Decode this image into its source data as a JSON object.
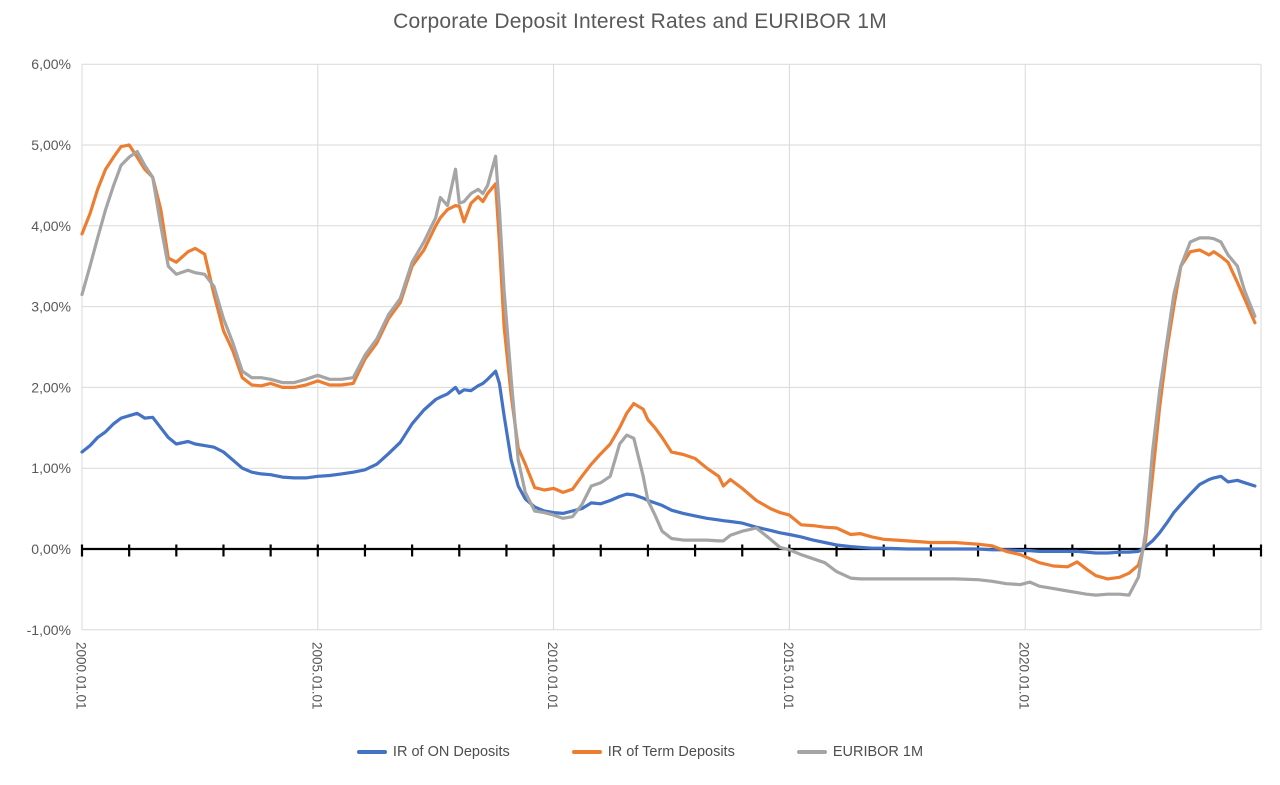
{
  "title": "Corporate Deposit Interest Rates and EURIBOR 1M",
  "colors": {
    "accent_blue": "#4472C4",
    "accent_orange": "#ED7D31",
    "accent_gray": "#A5A5A5",
    "axis_line": "#000000",
    "gridline": "#D9D9D9",
    "axis_label": "#595959",
    "title_text": "#595959",
    "legend_text": "#4d4d4d"
  },
  "chart_data": {
    "type": "line",
    "title": "Corporate Deposit Interest Rates and EURIBOR 1M",
    "xlabel": "",
    "ylabel": "",
    "x_range_years": [
      2000,
      2025
    ],
    "ylim": [
      -1,
      6
    ],
    "grid": true,
    "legend_position": "bottom",
    "y_tick_labels": [
      "6,00%",
      "5,00%",
      "4,00%",
      "3,00%",
      "2,00%",
      "1,00%",
      "0,00%",
      "-1,00%"
    ],
    "y_tick_values": [
      6,
      5,
      4,
      3,
      2,
      1,
      0,
      -1
    ],
    "x_tick_labels": [
      "2000.01.01",
      "2005.01.01",
      "2010.01.01",
      "2015.01.01",
      "2020.01.01"
    ],
    "x_tick_years": [
      2000,
      2005,
      2010,
      2015,
      2020
    ],
    "x_gridline_years": [
      2000,
      2005,
      2010,
      2015,
      2020,
      2025
    ],
    "axis_tick_interval_years": 1,
    "x": [
      2000.0,
      2000.17,
      2000.33,
      2000.5,
      2000.67,
      2000.83,
      2001.0,
      2001.17,
      2001.33,
      2001.5,
      2001.67,
      2001.83,
      2002.0,
      2002.25,
      2002.4,
      2002.6,
      2002.8,
      2003.0,
      2003.2,
      2003.4,
      2003.6,
      2003.8,
      2004.0,
      2004.25,
      2004.5,
      2004.75,
      2005.0,
      2005.25,
      2005.5,
      2005.75,
      2006.0,
      2006.25,
      2006.5,
      2006.75,
      2007.0,
      2007.25,
      2007.5,
      2007.6,
      2007.75,
      2007.92,
      2008.0,
      2008.1,
      2008.25,
      2008.4,
      2008.5,
      2008.6,
      2008.77,
      2008.85,
      2008.95,
      2009.1,
      2009.25,
      2009.4,
      2009.6,
      2009.8,
      2010.0,
      2010.2,
      2010.4,
      2010.6,
      2010.8,
      2011.0,
      2011.2,
      2011.4,
      2011.55,
      2011.7,
      2011.9,
      2012.0,
      2012.15,
      2012.3,
      2012.5,
      2012.75,
      2013.0,
      2013.25,
      2013.5,
      2013.6,
      2013.75,
      2014.0,
      2014.3,
      2014.6,
      2014.8,
      2015.0,
      2015.25,
      2015.5,
      2015.75,
      2016.0,
      2016.3,
      2016.5,
      2016.75,
      2017.0,
      2017.5,
      2018.0,
      2018.5,
      2019.0,
      2019.3,
      2019.6,
      2019.9,
      2020.1,
      2020.3,
      2020.6,
      2020.9,
      2021.1,
      2021.3,
      2021.5,
      2021.75,
      2022.0,
      2022.2,
      2022.4,
      2022.55,
      2022.7,
      2022.85,
      2023.0,
      2023.15,
      2023.3,
      2023.5,
      2023.7,
      2023.9,
      2024.0,
      2024.15,
      2024.3,
      2024.5,
      2024.65,
      2024.87
    ],
    "series": [
      {
        "name": "IR of ON Deposits",
        "color": "#4472C4",
        "values": [
          1.2,
          1.28,
          1.38,
          1.45,
          1.55,
          1.62,
          1.65,
          1.68,
          1.62,
          1.63,
          1.5,
          1.38,
          1.3,
          1.33,
          1.3,
          1.28,
          1.26,
          1.2,
          1.1,
          1.0,
          0.95,
          0.93,
          0.92,
          0.89,
          0.88,
          0.88,
          0.9,
          0.91,
          0.93,
          0.95,
          0.98,
          1.05,
          1.18,
          1.32,
          1.55,
          1.72,
          1.85,
          1.88,
          1.92,
          2.0,
          1.93,
          1.97,
          1.96,
          2.02,
          2.05,
          2.1,
          2.2,
          2.05,
          1.65,
          1.1,
          0.78,
          0.62,
          0.52,
          0.47,
          0.45,
          0.44,
          0.47,
          0.5,
          0.57,
          0.56,
          0.6,
          0.65,
          0.68,
          0.67,
          0.63,
          0.6,
          0.57,
          0.54,
          0.48,
          0.44,
          0.41,
          0.38,
          0.36,
          0.35,
          0.34,
          0.32,
          0.27,
          0.23,
          0.2,
          0.18,
          0.15,
          0.11,
          0.08,
          0.05,
          0.03,
          0.02,
          0.01,
          0.01,
          0.0,
          0.0,
          0.0,
          0.0,
          -0.01,
          -0.01,
          -0.02,
          -0.02,
          -0.03,
          -0.03,
          -0.03,
          -0.03,
          -0.04,
          -0.05,
          -0.05,
          -0.04,
          -0.04,
          -0.03,
          0.03,
          0.1,
          0.2,
          0.32,
          0.45,
          0.55,
          0.68,
          0.8,
          0.86,
          0.88,
          0.9,
          0.83,
          0.85,
          0.82,
          0.78
        ]
      },
      {
        "name": "IR of Term Deposits",
        "color": "#ED7D31",
        "values": [
          3.9,
          4.15,
          4.45,
          4.7,
          4.85,
          4.98,
          5.0,
          4.85,
          4.7,
          4.6,
          4.2,
          3.6,
          3.55,
          3.68,
          3.72,
          3.65,
          3.15,
          2.7,
          2.45,
          2.12,
          2.03,
          2.02,
          2.05,
          2.0,
          2.0,
          2.03,
          2.08,
          2.03,
          2.03,
          2.05,
          2.35,
          2.55,
          2.85,
          3.05,
          3.5,
          3.7,
          4.0,
          4.1,
          4.2,
          4.25,
          4.24,
          4.05,
          4.28,
          4.36,
          4.3,
          4.4,
          4.52,
          3.8,
          2.75,
          1.9,
          1.25,
          1.05,
          0.76,
          0.73,
          0.75,
          0.7,
          0.74,
          0.9,
          1.05,
          1.18,
          1.3,
          1.5,
          1.68,
          1.8,
          1.73,
          1.6,
          1.5,
          1.38,
          1.2,
          1.17,
          1.12,
          1.0,
          0.9,
          0.78,
          0.86,
          0.75,
          0.6,
          0.5,
          0.45,
          0.42,
          0.3,
          0.29,
          0.27,
          0.26,
          0.18,
          0.19,
          0.15,
          0.12,
          0.1,
          0.08,
          0.08,
          0.06,
          0.04,
          -0.03,
          -0.07,
          -0.12,
          -0.17,
          -0.21,
          -0.22,
          -0.16,
          -0.25,
          -0.33,
          -0.37,
          -0.35,
          -0.3,
          -0.2,
          0.1,
          0.9,
          1.75,
          2.45,
          3.0,
          3.5,
          3.68,
          3.7,
          3.64,
          3.68,
          3.62,
          3.55,
          3.3,
          3.1,
          2.8
        ]
      },
      {
        "name": "EURIBOR 1M",
        "color": "#A5A5A5",
        "values": [
          3.15,
          3.5,
          3.85,
          4.2,
          4.5,
          4.75,
          4.85,
          4.92,
          4.75,
          4.6,
          4.0,
          3.5,
          3.4,
          3.45,
          3.42,
          3.4,
          3.25,
          2.85,
          2.55,
          2.2,
          2.12,
          2.12,
          2.1,
          2.06,
          2.06,
          2.1,
          2.15,
          2.1,
          2.1,
          2.12,
          2.4,
          2.6,
          2.9,
          3.1,
          3.55,
          3.8,
          4.1,
          4.35,
          4.25,
          4.7,
          4.28,
          4.3,
          4.4,
          4.45,
          4.4,
          4.5,
          4.86,
          4.2,
          3.2,
          2.1,
          1.1,
          0.7,
          0.47,
          0.45,
          0.42,
          0.38,
          0.4,
          0.55,
          0.78,
          0.82,
          0.9,
          1.3,
          1.41,
          1.37,
          0.9,
          0.6,
          0.42,
          0.22,
          0.13,
          0.11,
          0.11,
          0.11,
          0.1,
          0.1,
          0.17,
          0.22,
          0.26,
          0.12,
          0.02,
          -0.01,
          -0.07,
          -0.12,
          -0.17,
          -0.28,
          -0.36,
          -0.37,
          -0.37,
          -0.37,
          -0.37,
          -0.37,
          -0.37,
          -0.38,
          -0.4,
          -0.43,
          -0.44,
          -0.41,
          -0.46,
          -0.49,
          -0.52,
          -0.54,
          -0.56,
          -0.57,
          -0.56,
          -0.56,
          -0.57,
          -0.35,
          0.2,
          1.2,
          1.95,
          2.55,
          3.15,
          3.5,
          3.8,
          3.85,
          3.85,
          3.84,
          3.8,
          3.64,
          3.5,
          3.2,
          2.88
        ]
      }
    ]
  }
}
